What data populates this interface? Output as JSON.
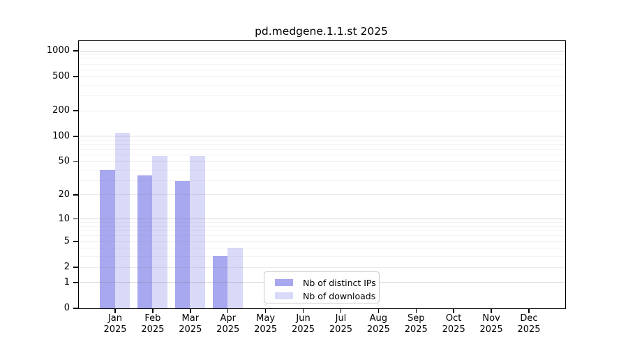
{
  "chart_data": {
    "type": "bar",
    "title": "pd.medgene.1.1.st 2025",
    "categories": [
      "Jan",
      "Feb",
      "Mar",
      "Apr",
      "May",
      "Jun",
      "Jul",
      "Aug",
      "Sep",
      "Oct",
      "Nov",
      "Dec"
    ],
    "x_year_label": "2025",
    "series": [
      {
        "name": "Nb of distinct IPs",
        "color": "#a8a8f0",
        "values": [
          40,
          34,
          29,
          3,
          0,
          0,
          0,
          0,
          0,
          0,
          0,
          0
        ]
      },
      {
        "name": "Nb of downloads",
        "color": "#d9d9f8",
        "values": [
          108,
          58,
          58,
          4,
          0,
          0,
          0,
          0,
          0,
          0,
          0,
          0
        ]
      }
    ],
    "y_axis": {
      "scale": "log1p",
      "tick_labels": [
        0,
        1,
        2,
        5,
        10,
        20,
        50,
        100,
        200,
        500,
        1000
      ],
      "major_gridlines": [
        1,
        10,
        100,
        1000
      ],
      "mid_gridlines": [
        2,
        5,
        20,
        50,
        200,
        500
      ],
      "minor_gridlines": [
        3,
        4,
        6,
        7,
        8,
        9,
        30,
        40,
        60,
        70,
        80,
        90,
        300,
        400,
        600,
        700,
        800,
        900
      ],
      "range": [
        0,
        1300
      ]
    },
    "grid": true,
    "legend_position": "lower-center",
    "frame_color": "#000000",
    "gridline_base_color": "#808080",
    "legend_border_color": "#c9c9c9"
  }
}
